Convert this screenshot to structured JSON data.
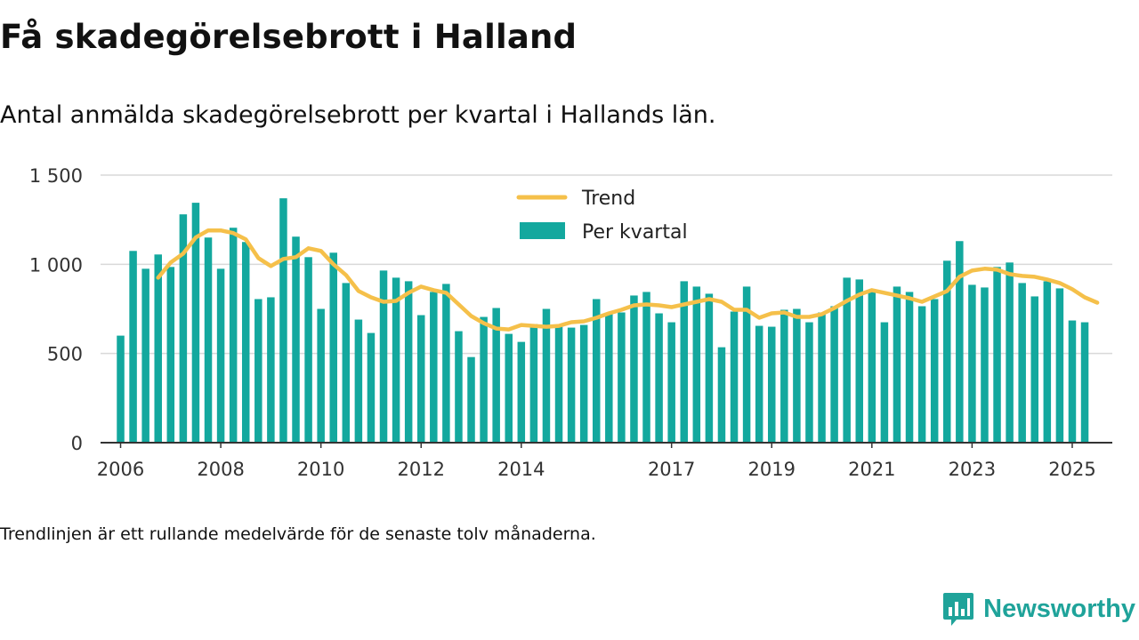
{
  "title": "Få skadegörelsebrott i Halland",
  "subtitle": "Antal anmälda skadegörelsebrott per kvartal i Hallands län.",
  "note": "Trendlinjen är ett rullande medelvärde för de senaste tolv månaderna.",
  "brand": {
    "name": "Newsworthy",
    "icon": "newsworthy-logo-icon"
  },
  "colors": {
    "bars": "#13a89e",
    "trend": "#f5c04a",
    "grid": "#d9d9d9",
    "axis": "#333333",
    "brand": "#1fa39a"
  },
  "chart_data": {
    "type": "bar",
    "x_unit": "quarter",
    "start": "2006 Q1",
    "xlim": [
      2005.6,
      2025.8
    ],
    "ylim": [
      0,
      1500
    ],
    "grid": true,
    "legend_position": "top-center",
    "y_ticks": [
      {
        "value": 0,
        "label": "0"
      },
      {
        "value": 500,
        "label": "500"
      },
      {
        "value": 1000,
        "label": "1 000"
      },
      {
        "value": 1500,
        "label": "1 500"
      }
    ],
    "x_ticks": [
      {
        "value": 2006,
        "label": "2006"
      },
      {
        "value": 2008,
        "label": "2008"
      },
      {
        "value": 2010,
        "label": "2010"
      },
      {
        "value": 2012,
        "label": "2012"
      },
      {
        "value": 2014,
        "label": "2014"
      },
      {
        "value": 2017,
        "label": "2017"
      },
      {
        "value": 2019,
        "label": "2019"
      },
      {
        "value": 2021,
        "label": "2021"
      },
      {
        "value": 2023,
        "label": "2023"
      },
      {
        "value": 2025,
        "label": "2025"
      }
    ],
    "series": [
      {
        "name": "Per kvartal",
        "type": "bar",
        "values": [
          600,
          1075,
          975,
          1055,
          985,
          1280,
          1345,
          1150,
          975,
          1205,
          1125,
          805,
          815,
          1370,
          1155,
          1040,
          750,
          1065,
          895,
          690,
          615,
          965,
          925,
          905,
          715,
          845,
          890,
          625,
          480,
          705,
          755,
          610,
          565,
          665,
          750,
          650,
          645,
          660,
          805,
          725,
          730,
          825,
          845,
          725,
          675,
          905,
          875,
          835,
          535,
          735,
          875,
          655,
          650,
          745,
          750,
          675,
          730,
          765,
          925,
          915,
          845,
          675,
          875,
          845,
          765,
          805,
          1020,
          1130,
          885,
          870,
          985,
          1010,
          895,
          820,
          905,
          865,
          685,
          675
        ]
      },
      {
        "name": "Trend",
        "type": "line",
        "start_index": 3,
        "values": [
          925,
          1010,
          1060,
          1150,
          1190,
          1190,
          1175,
          1140,
          1035,
          990,
          1030,
          1040,
          1090,
          1075,
          1000,
          940,
          850,
          815,
          790,
          795,
          840,
          875,
          855,
          840,
          775,
          710,
          670,
          640,
          635,
          660,
          655,
          650,
          655,
          675,
          680,
          700,
          725,
          745,
          770,
          775,
          770,
          760,
          775,
          790,
          805,
          790,
          745,
          745,
          700,
          725,
          730,
          705,
          705,
          720,
          755,
          795,
          830,
          855,
          840,
          825,
          810,
          790,
          820,
          850,
          930,
          965,
          975,
          970,
          945,
          935,
          930,
          915,
          895,
          860,
          815,
          785
        ]
      }
    ]
  }
}
